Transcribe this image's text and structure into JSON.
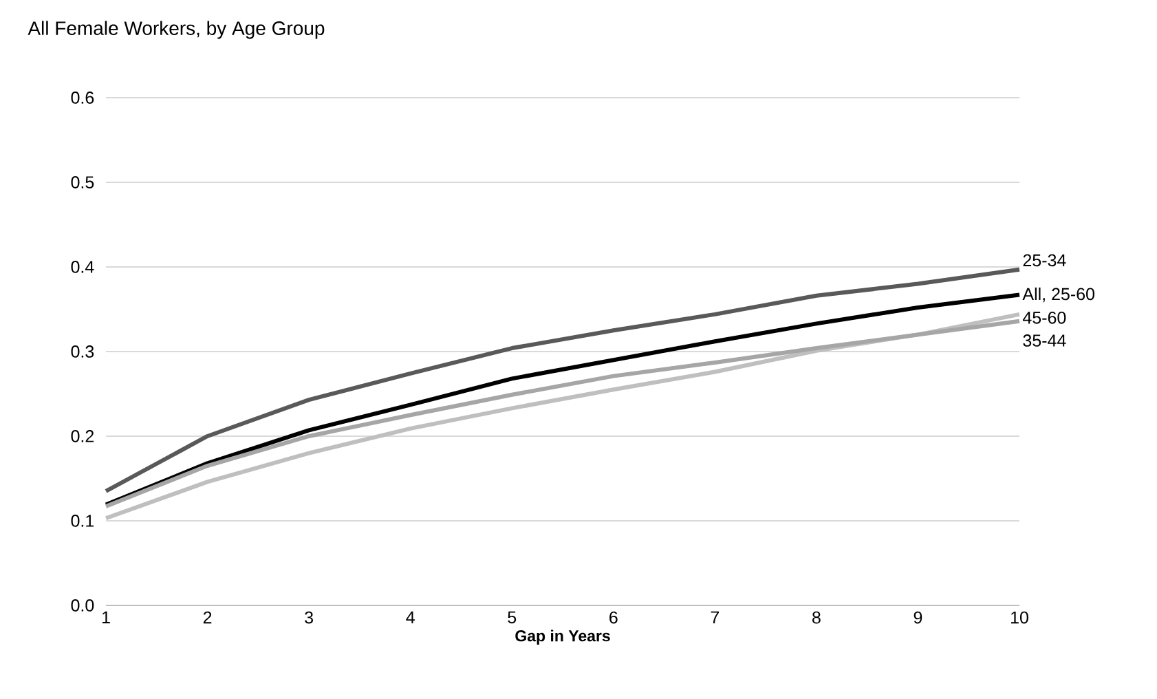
{
  "chart_data": {
    "type": "line",
    "title": "All Female Workers, by Age Group",
    "xlabel": "Gap in Years",
    "x": [
      1,
      2,
      3,
      4,
      5,
      6,
      7,
      8,
      9,
      10
    ],
    "series": [
      {
        "name": "25-34",
        "color": "#595959",
        "values": [
          0.135,
          0.2,
          0.243,
          0.274,
          0.304,
          0.325,
          0.344,
          0.366,
          0.38,
          0.397
        ]
      },
      {
        "name": "All, 25-60",
        "color": "#000000",
        "values": [
          0.119,
          0.168,
          0.207,
          0.237,
          0.268,
          0.29,
          0.312,
          0.333,
          0.352,
          0.367
        ]
      },
      {
        "name": "45-60",
        "color": "#bfbfbf",
        "values": [
          0.103,
          0.146,
          0.18,
          0.209,
          0.233,
          0.255,
          0.276,
          0.301,
          0.32,
          0.344
        ]
      },
      {
        "name": "35-44",
        "color": "#a6a6a6",
        "values": [
          0.117,
          0.165,
          0.2,
          0.225,
          0.249,
          0.271,
          0.287,
          0.304,
          0.32,
          0.336
        ]
      }
    ],
    "xlim": [
      1,
      10
    ],
    "xticks": [
      1,
      2,
      3,
      4,
      5,
      6,
      7,
      8,
      9,
      10
    ],
    "ylim": [
      0,
      0.6
    ],
    "yticks": [
      {
        "value": 0,
        "label": "0.0"
      },
      {
        "value": 0.1,
        "label": "0.1"
      },
      {
        "value": 0.2,
        "label": "0.2"
      },
      {
        "value": 0.3,
        "label": "0.3"
      },
      {
        "value": 0.4,
        "label": "0.4"
      },
      {
        "value": 0.5,
        "label": "0.5"
      },
      {
        "value": 0.6,
        "label": "0.6"
      }
    ],
    "grid": "y",
    "marker": "none",
    "line_style": "solid"
  }
}
